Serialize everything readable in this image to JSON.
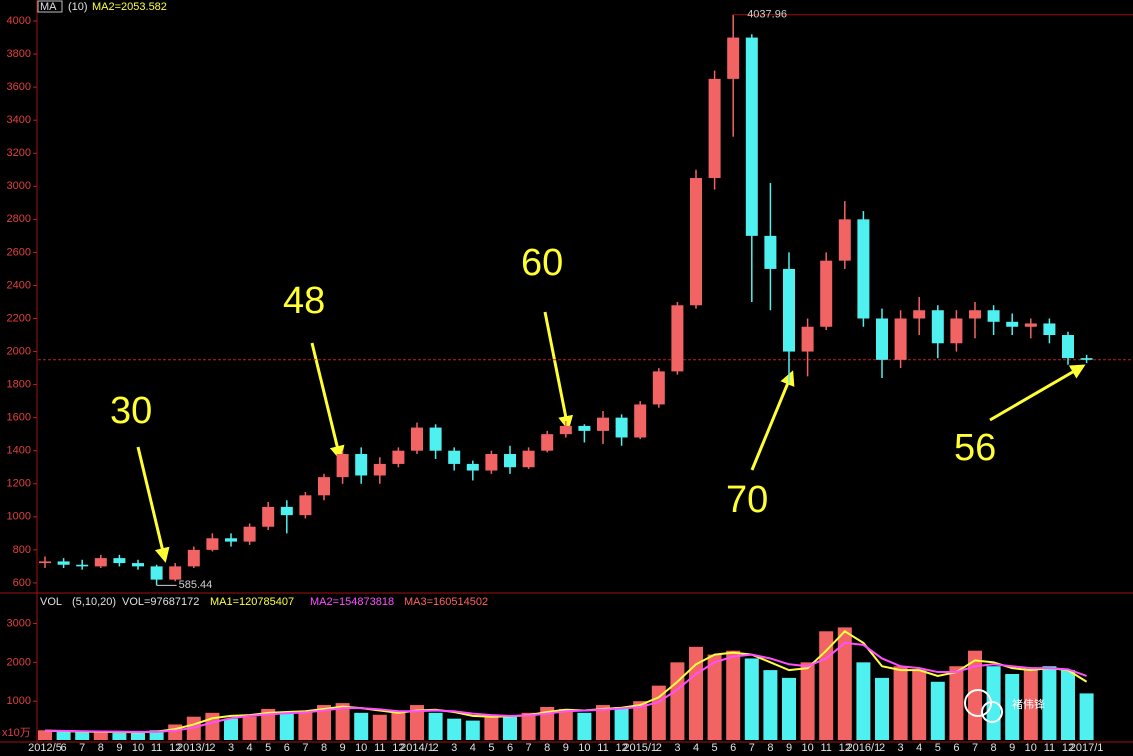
{
  "chart_data": {
    "type": "candlestick",
    "ma_header": [
      "MA",
      "(10)",
      "MA2=2053.582"
    ],
    "categories": [
      "2012/5",
      "6",
      "7",
      "8",
      "9",
      "10",
      "11",
      "12",
      "2013/1",
      "2",
      "3",
      "4",
      "5",
      "6",
      "7",
      "8",
      "9",
      "10",
      "11",
      "12",
      "2014/1",
      "2",
      "3",
      "4",
      "5",
      "6",
      "7",
      "8",
      "9",
      "10",
      "11",
      "12",
      "2015/1",
      "2",
      "3",
      "4",
      "5",
      "6",
      "7",
      "8",
      "9",
      "10",
      "11",
      "12",
      "2016/1",
      "2",
      "3",
      "4",
      "5",
      "6",
      "7",
      "8",
      "9",
      "10",
      "11",
      "12",
      "2017/1"
    ],
    "open": [
      720,
      730,
      710,
      700,
      750,
      720,
      700,
      620,
      700,
      800,
      870,
      850,
      940,
      1060,
      1010,
      1130,
      1240,
      1380,
      1250,
      1320,
      1400,
      1540,
      1400,
      1320,
      1280,
      1380,
      1300,
      1400,
      1500,
      1550,
      1520,
      1600,
      1480,
      1680,
      1880,
      2280,
      3050,
      3650,
      3900,
      2700,
      2500,
      2000,
      2150,
      2550,
      2800,
      2200,
      1950,
      2200,
      2250,
      2050,
      2200,
      2250,
      2180,
      2150,
      2170,
      2100,
      1960
    ],
    "high": [
      760,
      750,
      740,
      770,
      770,
      740,
      710,
      720,
      820,
      900,
      900,
      960,
      1090,
      1100,
      1150,
      1260,
      1400,
      1420,
      1360,
      1420,
      1570,
      1560,
      1420,
      1340,
      1400,
      1430,
      1420,
      1520,
      1580,
      1560,
      1640,
      1620,
      1700,
      1900,
      2300,
      3100,
      3700,
      4037.96,
      3920,
      3020,
      2600,
      2200,
      2600,
      2910,
      2850,
      2260,
      2250,
      2330,
      2280,
      2250,
      2300,
      2280,
      2230,
      2200,
      2200,
      2120,
      1980
    ],
    "low": [
      690,
      690,
      680,
      690,
      700,
      680,
      585.44,
      610,
      690,
      790,
      820,
      830,
      920,
      900,
      990,
      1100,
      1200,
      1200,
      1200,
      1300,
      1380,
      1350,
      1280,
      1220,
      1260,
      1260,
      1290,
      1390,
      1480,
      1450,
      1440,
      1430,
      1470,
      1660,
      1860,
      2260,
      2980,
      3300,
      2300,
      2250,
      1810,
      1850,
      2130,
      2500,
      2150,
      1840,
      1900,
      2100,
      1960,
      2000,
      2080,
      2100,
      2100,
      2080,
      2050,
      1920,
      1930
    ],
    "close": [
      730,
      710,
      700,
      750,
      720,
      700,
      620,
      700,
      800,
      870,
      850,
      940,
      1060,
      1010,
      1130,
      1240,
      1380,
      1250,
      1320,
      1400,
      1540,
      1400,
      1320,
      1280,
      1380,
      1300,
      1400,
      1500,
      1550,
      1520,
      1600,
      1480,
      1680,
      1880,
      2280,
      3050,
      3650,
      3900,
      2700,
      2500,
      2000,
      2150,
      2550,
      2800,
      2200,
      1950,
      2200,
      2250,
      2050,
      2200,
      2250,
      2180,
      2150,
      2170,
      2100,
      1960,
      1950
    ],
    "up_color": "#f26464",
    "down_color": "#4ff0f0",
    "ylim": [
      545,
      4097
    ],
    "yticks": [
      600,
      800,
      1000,
      1200,
      1400,
      1600,
      1800,
      2000,
      2200,
      2400,
      2600,
      2800,
      3000,
      3200,
      3400,
      3600,
      3800,
      4000
    ],
    "price_line": 1950,
    "annotations": [
      "30",
      "48",
      "60",
      "70",
      "56"
    ],
    "volume": {
      "header": [
        "VOL",
        "(5,10,20)",
        "VOL=97687172",
        "MA1=120785407",
        "MA2=154873818",
        "MA3=160514502"
      ],
      "unit": "x10万",
      "values": [
        250,
        220,
        200,
        230,
        180,
        200,
        250,
        400,
        600,
        700,
        550,
        600,
        800,
        700,
        750,
        900,
        950,
        700,
        650,
        700,
        900,
        700,
        550,
        500,
        650,
        600,
        700,
        850,
        800,
        700,
        900,
        850,
        1000,
        1400,
        2000,
        2400,
        2200,
        2300,
        2100,
        1800,
        1600,
        2000,
        2800,
        2900,
        2000,
        1600,
        1900,
        1800,
        1500,
        1900,
        2300,
        1900,
        1700,
        1800,
        1900,
        1800,
        1200
      ],
      "ylim": [
        0,
        3400
      ],
      "yticks": [
        1000,
        2000,
        3000
      ],
      "ma_series": [
        {
          "color": "#ffff40",
          "values": [
            240,
            230,
            215,
            210,
            205,
            200,
            215,
            280,
            400,
            560,
            620,
            640,
            700,
            720,
            740,
            800,
            860,
            820,
            760,
            700,
            760,
            780,
            720,
            620,
            600,
            610,
            640,
            720,
            780,
            760,
            800,
            830,
            900,
            1100,
            1500,
            1950,
            2200,
            2250,
            2200,
            2000,
            1800,
            1850,
            2300,
            2800,
            2500,
            1900,
            1800,
            1800,
            1650,
            1750,
            2050,
            2000,
            1850,
            1800,
            1850,
            1800,
            1500
          ]
        },
        {
          "color": "#ff50ff",
          "values": [
            240,
            235,
            225,
            220,
            215,
            210,
            210,
            240,
            320,
            450,
            560,
            620,
            660,
            690,
            710,
            760,
            820,
            820,
            790,
            740,
            740,
            760,
            740,
            680,
            640,
            620,
            630,
            680,
            740,
            760,
            780,
            810,
            850,
            980,
            1300,
            1700,
            2000,
            2150,
            2200,
            2100,
            1950,
            1900,
            2100,
            2500,
            2450,
            2100,
            1900,
            1850,
            1750,
            1750,
            1900,
            1950,
            1900,
            1850,
            1850,
            1820,
            1650
          ]
        }
      ]
    },
    "watermark": "褚伟锋"
  }
}
